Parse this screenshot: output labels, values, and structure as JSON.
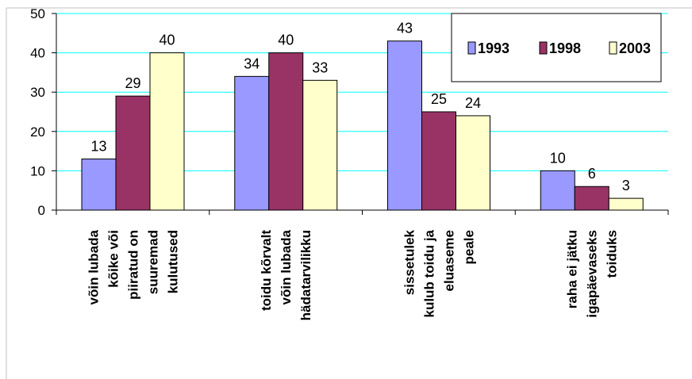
{
  "chart_data": {
    "type": "bar",
    "categories": [
      [
        "võin lubada",
        "kõike või",
        "piiratud on",
        "suuremad",
        "kulutused"
      ],
      [
        "toidu kõrvalt",
        "võin lubada",
        "hädatarvilikku"
      ],
      [
        "sissetulek",
        "kulub toidu ja",
        "eluaseme",
        "peale"
      ],
      [
        "raha ei jätku",
        "igapäevaseks",
        "toiduks"
      ]
    ],
    "series": [
      {
        "name": "1993",
        "values": [
          13,
          34,
          43,
          10
        ],
        "color": "#9999ff"
      },
      {
        "name": "1998",
        "values": [
          29,
          40,
          25,
          6
        ],
        "color": "#993366"
      },
      {
        "name": "2003",
        "values": [
          40,
          33,
          24,
          3
        ],
        "color": "#ffffcc"
      }
    ],
    "ylim": [
      0,
      50
    ],
    "yticks": [
      0,
      10,
      20,
      30,
      40,
      50
    ],
    "grid": true,
    "gridColor": "#00ffff",
    "legend_position": "top-right",
    "title": "",
    "xlabel": "",
    "ylabel": ""
  }
}
